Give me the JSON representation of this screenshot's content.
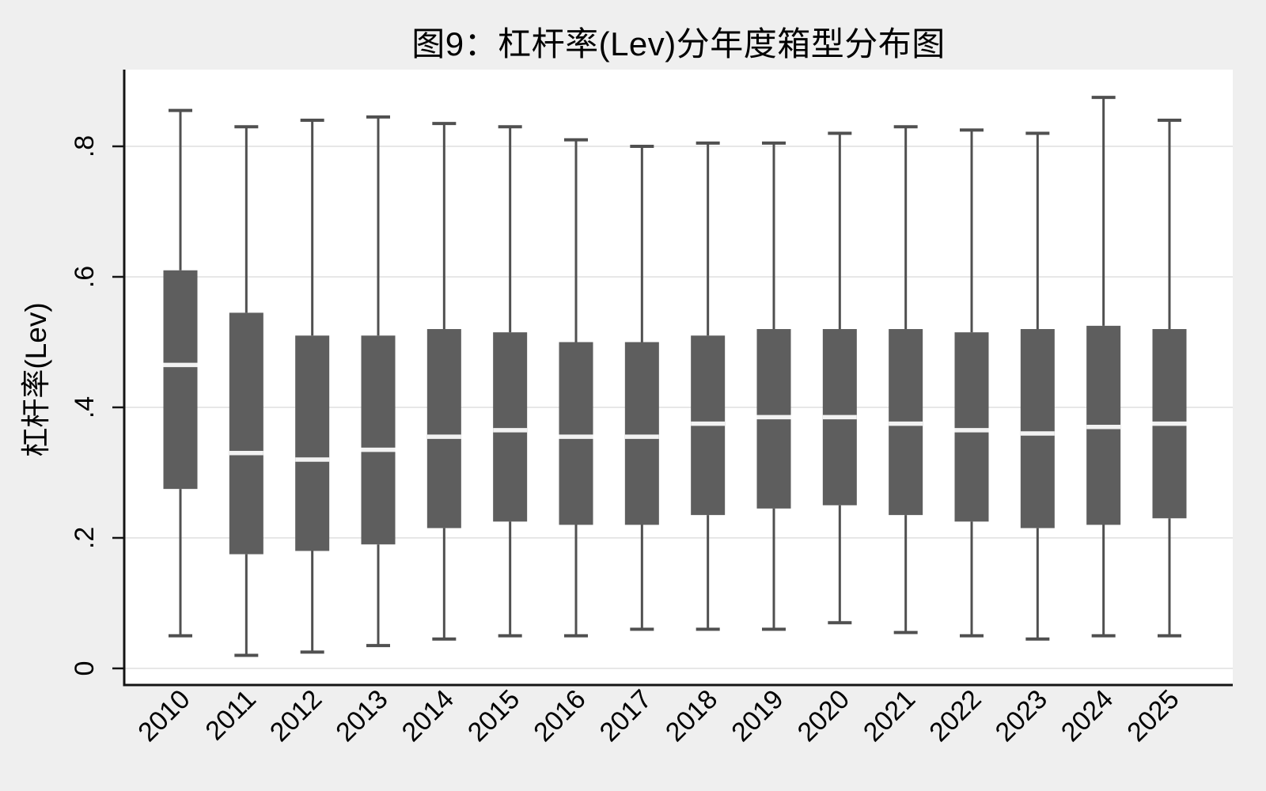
{
  "figure": {
    "background": "#efefef",
    "plot_background": "#ffffff"
  },
  "chart_data": {
    "type": "box",
    "title": "图9：杠杆率(Lev)分年度箱型分布图",
    "xlabel": "",
    "ylabel": "杠杆率(Lev)",
    "ylim": [
      0,
      0.92
    ],
    "grid": true,
    "legend": "none",
    "yticks": [
      {
        "value": 0,
        "label": "0"
      },
      {
        "value": 0.2,
        "label": ".2"
      },
      {
        "value": 0.4,
        "label": ".4"
      },
      {
        "value": 0.6,
        "label": ".6"
      },
      {
        "value": 0.8,
        "label": ".8"
      }
    ],
    "categories": [
      "2010",
      "2011",
      "2012",
      "2013",
      "2014",
      "2015",
      "2016",
      "2017",
      "2018",
      "2019",
      "2020",
      "2021",
      "2022",
      "2023",
      "2024",
      "2025"
    ],
    "boxes": [
      {
        "year": "2010",
        "lower_whisker": 0.05,
        "q1": 0.275,
        "median": 0.465,
        "q3": 0.61,
        "upper_whisker": 0.855
      },
      {
        "year": "2011",
        "lower_whisker": 0.02,
        "q1": 0.175,
        "median": 0.33,
        "q3": 0.545,
        "upper_whisker": 0.83
      },
      {
        "year": "2012",
        "lower_whisker": 0.025,
        "q1": 0.18,
        "median": 0.32,
        "q3": 0.51,
        "upper_whisker": 0.84
      },
      {
        "year": "2013",
        "lower_whisker": 0.035,
        "q1": 0.19,
        "median": 0.335,
        "q3": 0.51,
        "upper_whisker": 0.845
      },
      {
        "year": "2014",
        "lower_whisker": 0.045,
        "q1": 0.215,
        "median": 0.355,
        "q3": 0.52,
        "upper_whisker": 0.835
      },
      {
        "year": "2015",
        "lower_whisker": 0.05,
        "q1": 0.225,
        "median": 0.365,
        "q3": 0.515,
        "upper_whisker": 0.83
      },
      {
        "year": "2016",
        "lower_whisker": 0.05,
        "q1": 0.22,
        "median": 0.355,
        "q3": 0.5,
        "upper_whisker": 0.81
      },
      {
        "year": "2017",
        "lower_whisker": 0.06,
        "q1": 0.22,
        "median": 0.355,
        "q3": 0.5,
        "upper_whisker": 0.8
      },
      {
        "year": "2018",
        "lower_whisker": 0.06,
        "q1": 0.235,
        "median": 0.375,
        "q3": 0.51,
        "upper_whisker": 0.805
      },
      {
        "year": "2019",
        "lower_whisker": 0.06,
        "q1": 0.245,
        "median": 0.385,
        "q3": 0.52,
        "upper_whisker": 0.805
      },
      {
        "year": "2020",
        "lower_whisker": 0.07,
        "q1": 0.25,
        "median": 0.385,
        "q3": 0.52,
        "upper_whisker": 0.82
      },
      {
        "year": "2021",
        "lower_whisker": 0.055,
        "q1": 0.235,
        "median": 0.375,
        "q3": 0.52,
        "upper_whisker": 0.83
      },
      {
        "year": "2022",
        "lower_whisker": 0.05,
        "q1": 0.225,
        "median": 0.365,
        "q3": 0.515,
        "upper_whisker": 0.825
      },
      {
        "year": "2023",
        "lower_whisker": 0.045,
        "q1": 0.215,
        "median": 0.36,
        "q3": 0.52,
        "upper_whisker": 0.82
      },
      {
        "year": "2024",
        "lower_whisker": 0.05,
        "q1": 0.22,
        "median": 0.37,
        "q3": 0.525,
        "upper_whisker": 0.875
      },
      {
        "year": "2025",
        "lower_whisker": 0.05,
        "q1": 0.23,
        "median": 0.375,
        "q3": 0.52,
        "upper_whisker": 0.84
      }
    ],
    "colors": {
      "box_fill": "#5e5e5e",
      "median_line": "#f2f2f2",
      "whisker": "#505050",
      "gridline": "#e7e7e7",
      "axis": "#141414",
      "figure_background": "#efefef",
      "plot_background": "#ffffff"
    }
  }
}
